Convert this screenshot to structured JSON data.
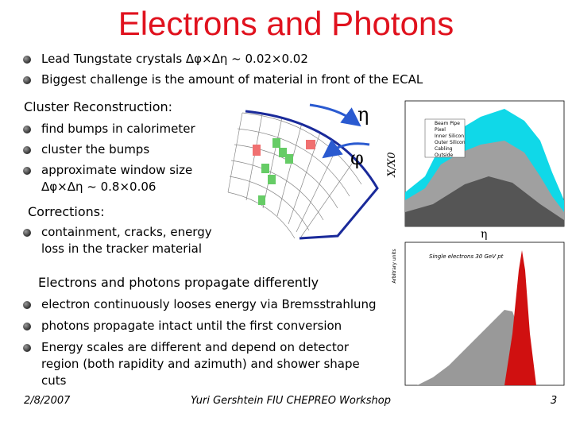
{
  "title": "Electrons and Photons",
  "bullets": [
    "Lead Tungstate crystals Δφ×Δη ~ 0.02×0.02",
    "Biggest challenge is the amount of material in front of the ECAL"
  ],
  "sections": [
    {
      "heading": "Cluster Reconstruction:",
      "bullets": [
        "find bumps in calorimeter",
        "cluster the bumps",
        "approximate window size\nΔφ×Δη ~ 0.8×0.06"
      ]
    },
    {
      "heading": "Corrections:",
      "bullets": [
        "containment, cracks, energy loss in the tracker material"
      ]
    },
    {
      "heading": "Electrons and photons propagate differently",
      "bullets": [
        "electron continuously looses energy via Bremsstrahlung",
        "photons propagate intact until the first conversion",
        "Energy scales are different and depend on detector region (both rapidity and azimuth) and shower shape cuts"
      ]
    }
  ],
  "figures": {
    "crystal_diagram": {
      "eta": "η",
      "phi": "φ"
    },
    "material_plot": {
      "y_label": "X/X0",
      "x_label": "η",
      "legend": [
        "Beam Pipe",
        "Pixel",
        "Inner Silicon",
        "Outer Silicon",
        "Cabling",
        "Outside"
      ]
    },
    "energy_plot": {
      "title": "Single electrons 30 GeV pt",
      "y_label": "Arbitrary units"
    }
  },
  "footer": {
    "date": "2/8/2007",
    "author": "Yuri Gershtein FIU CHEPREO Workshop",
    "page": "3"
  }
}
